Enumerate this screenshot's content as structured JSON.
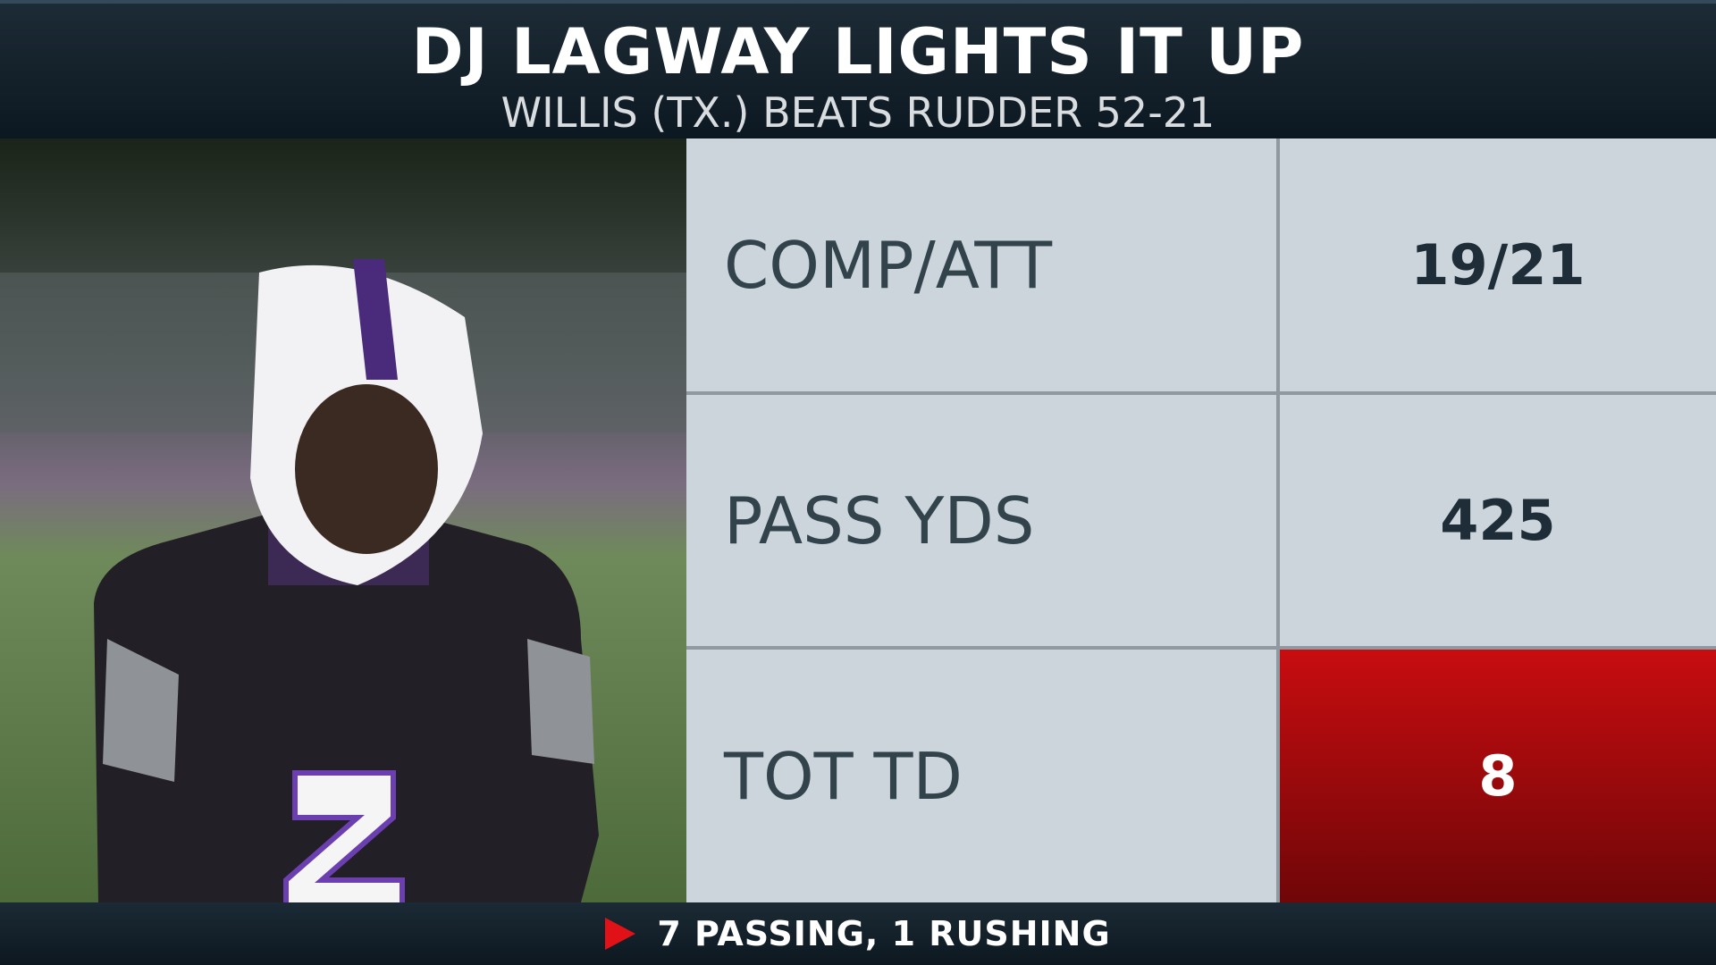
{
  "header": {
    "title": "DJ LAGWAY LIGHTS IT UP",
    "subtitle": "WILLIS (TX.) BEATS RUDDER 52-21"
  },
  "table": {
    "rows": [
      [
        "COMP/ATT",
        "19/21"
      ],
      [
        "PASS YDS",
        425
      ],
      [
        "TOT TD",
        8
      ]
    ]
  },
  "footer": {
    "text": "7 PASSING, 1 RUSHING"
  }
}
